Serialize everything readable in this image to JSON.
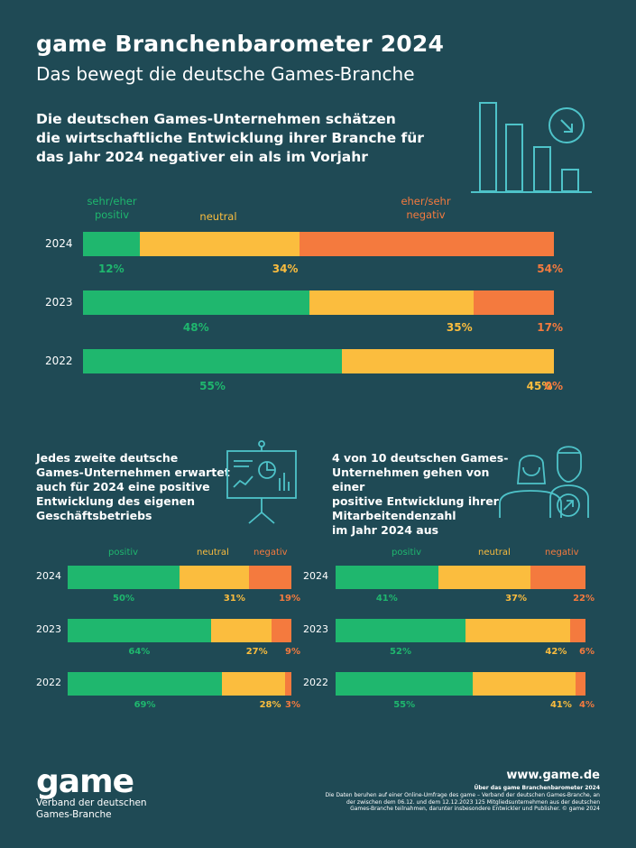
{
  "header": {
    "title": "game Branchenbarometer 2024",
    "subtitle": "Das bewegt die deutsche Games-Branche"
  },
  "colors": {
    "positive": "#1fb76e",
    "neutral": "#fbbd3e",
    "negative": "#f47a3e",
    "background": "#1f4a55",
    "icon_line": "#4ec3c9"
  },
  "chart_data": [
    {
      "type": "bar",
      "stacked": true,
      "orientation": "horizontal",
      "title": "Die deutschen Games-Unternehmen schätzen die wirtschaftliche Entwicklung ihrer Branche für das Jahr 2024 negativer ein als im Vorjahr",
      "legend": [
        "sehr/eher positiv",
        "neutral",
        "eher/sehr negativ"
      ],
      "categories": [
        "2024",
        "2023",
        "2022"
      ],
      "series": [
        {
          "name": "sehr/eher positiv",
          "values": [
            12,
            48,
            55
          ]
        },
        {
          "name": "neutral",
          "values": [
            34,
            35,
            45
          ]
        },
        {
          "name": "eher/sehr negativ",
          "values": [
            54,
            17,
            0
          ]
        }
      ],
      "value_labels": [
        [
          "12%",
          "34%",
          "54%"
        ],
        [
          "48%",
          "35%",
          "17%"
        ],
        [
          "55%",
          "45%",
          "0%"
        ]
      ]
    },
    {
      "type": "bar",
      "stacked": true,
      "orientation": "horizontal",
      "title": "Jedes zweite deutsche Games-Unternehmen erwartet auch für 2024 eine positive Entwicklung des eigenen Geschäftsbetriebs",
      "legend": [
        "positiv",
        "neutral",
        "negativ"
      ],
      "categories": [
        "2024",
        "2023",
        "2022"
      ],
      "series": [
        {
          "name": "positiv",
          "values": [
            50,
            64,
            69
          ]
        },
        {
          "name": "neutral",
          "values": [
            31,
            27,
            28
          ]
        },
        {
          "name": "negativ",
          "values": [
            19,
            9,
            3
          ]
        }
      ],
      "value_labels": [
        [
          "50%",
          "31%",
          "19%"
        ],
        [
          "64%",
          "27%",
          "9%"
        ],
        [
          "69%",
          "28%",
          "3%"
        ]
      ]
    },
    {
      "type": "bar",
      "stacked": true,
      "orientation": "horizontal",
      "title": "4 von 10 deutschen Games-Unternehmen gehen von einer positive Entwicklung ihrer Mitarbeitendenzahl im Jahr 2024 aus",
      "legend": [
        "positiv",
        "neutral",
        "negativ"
      ],
      "categories": [
        "2024",
        "2023",
        "2022"
      ],
      "series": [
        {
          "name": "positiv",
          "values": [
            41,
            52,
            55
          ]
        },
        {
          "name": "neutral",
          "values": [
            37,
            42,
            41
          ]
        },
        {
          "name": "negativ",
          "values": [
            22,
            6,
            4
          ]
        }
      ],
      "value_labels": [
        [
          "41%",
          "37%",
          "22%"
        ],
        [
          "52%",
          "42%",
          "6%"
        ],
        [
          "55%",
          "41%",
          "4%"
        ]
      ]
    }
  ],
  "main_chart": {
    "headline_lines": [
      "Die deutschen Games-Unternehmen schätzen",
      "die wirtschaftliche Entwicklung ihrer Branche für",
      "das Jahr 2024 negativer ein als im Vorjahr"
    ],
    "legend_positive_lines": [
      "sehr/eher",
      "positiv"
    ],
    "legend_neutral": "neutral",
    "legend_negative_lines": [
      "eher/sehr",
      "negativ"
    ]
  },
  "left_chart": {
    "headline_lines": [
      "Jedes zweite deutsche",
      "Games-Unternehmen erwartet",
      "auch für 2024 eine positive",
      "Entwicklung des eigenen",
      "Geschäftsbetriebs"
    ]
  },
  "right_chart": {
    "headline_lines": [
      "4 von 10 deutschen Games-",
      "Unternehmen gehen von einer",
      "positive Entwicklung ihrer",
      "Mitarbeitendenzahl",
      "im Jahr 2024 aus"
    ]
  },
  "footer": {
    "logo": "game",
    "logo_sub_lines": [
      "Verband der deutschen",
      "Games-Branche"
    ],
    "url": "www.game.de",
    "footnote_title": "Über das game Branchenbarometer 2024",
    "footnote_lines": [
      "Die Daten beruhen auf einer Online-Umfrage des game – Verband der deutschen Games-Branche, an",
      "der zwischen dem 06.12. und dem 12.12.2023 125 Mitgliedsunternehmen aus der deutschen",
      "Games-Branche teilnahmen, darunter insbesondere Entwickler und Publisher. © game 2024"
    ]
  }
}
